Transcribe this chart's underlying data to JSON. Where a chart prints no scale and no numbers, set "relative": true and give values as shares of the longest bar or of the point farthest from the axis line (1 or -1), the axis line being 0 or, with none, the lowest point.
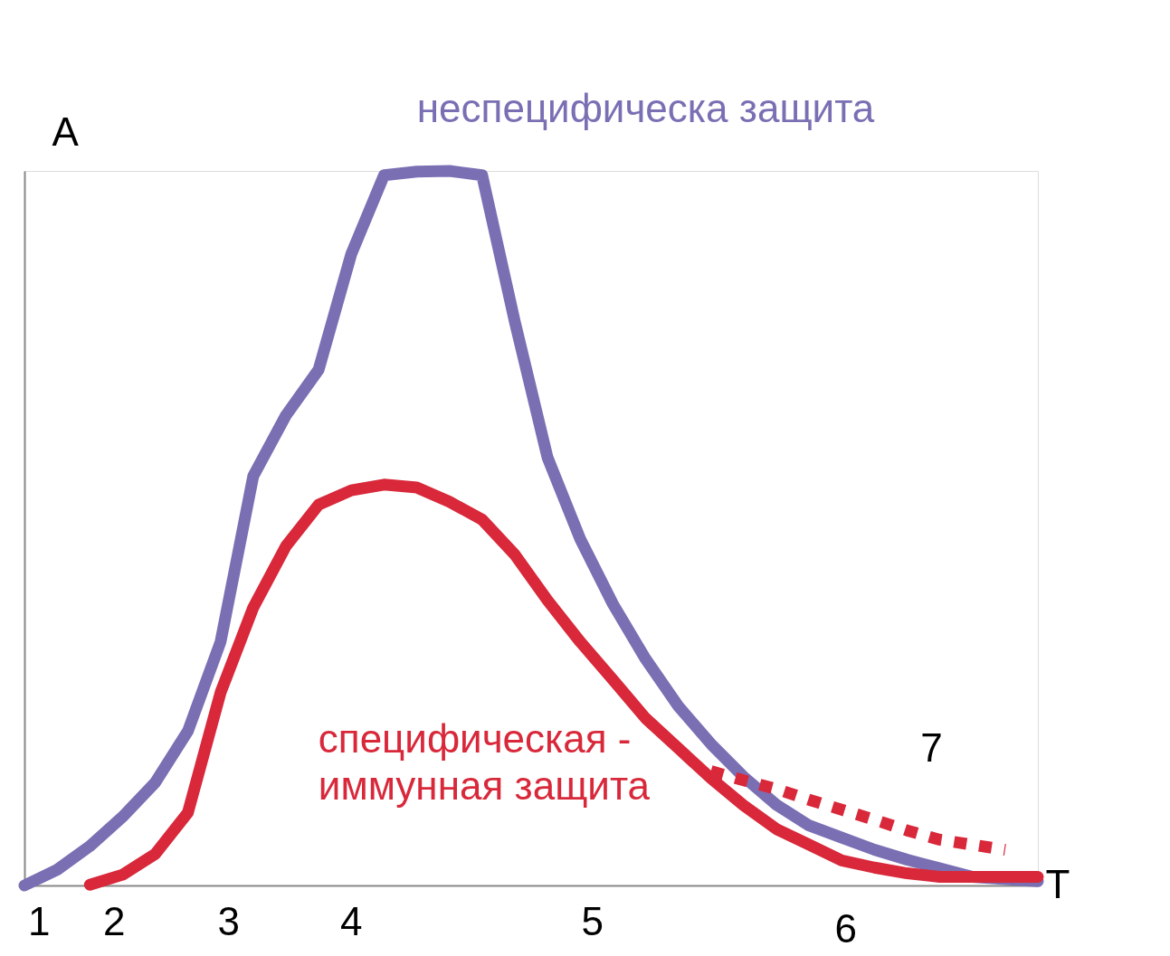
{
  "chart_data": {
    "type": "line",
    "relative": true,
    "xlabel": "T",
    "ylabel": "A",
    "categories": [
      null,
      null,
      null,
      null,
      null,
      null,
      null,
      null,
      null,
      null,
      null,
      null,
      null,
      null,
      null,
      null,
      null,
      null,
      null,
      null,
      null,
      null,
      null,
      null,
      null,
      null,
      null,
      null,
      null,
      null,
      null,
      null
    ],
    "series": [
      {
        "name": "неспецифическа защита",
        "color": "#7b6fb4",
        "line_style": "solid",
        "values": [
          0,
          0.022,
          0.055,
          0.096,
          0.144,
          0.216,
          0.341,
          0.573,
          0.658,
          0.722,
          0.884,
          0.994,
          0.999,
          1.0,
          0.994,
          0.789,
          0.599,
          0.485,
          0.394,
          0.317,
          0.251,
          0.198,
          0.152,
          0.113,
          0.084,
          0.067,
          0.05,
          0.036,
          0.024,
          0.012,
          0.009,
          0.006
        ]
      },
      {
        "name": "специфическая - иммунная защита",
        "color": "#d8283a",
        "line_style": "solid",
        "values": [
          null,
          null,
          0.001,
          0.015,
          0.044,
          0.102,
          0.27,
          0.389,
          0.475,
          0.533,
          0.553,
          0.561,
          0.557,
          0.537,
          0.512,
          0.463,
          0.399,
          0.341,
          0.288,
          0.234,
          0.192,
          0.15,
          0.112,
          0.079,
          0.057,
          0.035,
          0.025,
          0.017,
          0.012,
          0.012,
          0.012,
          0.012
        ]
      },
      {
        "color": "#d8283a",
        "line_style": "dotted",
        "values": [
          null,
          null,
          null,
          null,
          null,
          null,
          null,
          null,
          null,
          null,
          null,
          null,
          null,
          null,
          null,
          null,
          null,
          null,
          null,
          null,
          null,
          0.16,
          0.147,
          0.135,
          0.12,
          0.106,
          0.092,
          0.077,
          0.064,
          0.057,
          0.05,
          null
        ]
      }
    ],
    "annotations": [
      "1",
      "2",
      "3",
      "4",
      "5",
      "6",
      "7"
    ]
  }
}
